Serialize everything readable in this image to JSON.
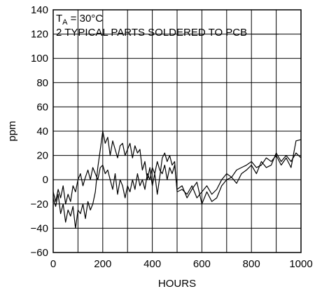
{
  "chart_data": {
    "type": "line",
    "xlabel": "HOURS",
    "ylabel": "ppm",
    "xlim": [
      0,
      1000
    ],
    "ylim": [
      -60,
      140
    ],
    "x_ticks": [
      "0",
      "200",
      "400",
      "600",
      "800",
      "1000"
    ],
    "y_ticks": [
      "−60",
      "−40",
      "−20",
      "0",
      "20",
      "40",
      "60",
      "80",
      "100",
      "120",
      "140"
    ],
    "x_minor_step": 100,
    "y_step": 20,
    "grid": true,
    "legend": "none",
    "annotations": {
      "ta_prefix": "T",
      "ta_subscript": "A",
      "ta_suffix": " = 30°C",
      "parts": "2 TYPICAL PARTS SOLDERED TO PCB"
    },
    "series": [
      {
        "color": "#000000",
        "points": [
          [
            0,
            -15
          ],
          [
            10,
            -22
          ],
          [
            20,
            -12
          ],
          [
            30,
            -28
          ],
          [
            40,
            -20
          ],
          [
            50,
            -35
          ],
          [
            60,
            -25
          ],
          [
            70,
            -30
          ],
          [
            80,
            -22
          ],
          [
            90,
            -40
          ],
          [
            100,
            -25
          ],
          [
            110,
            -28
          ],
          [
            120,
            -20
          ],
          [
            130,
            -32
          ],
          [
            140,
            -18
          ],
          [
            150,
            -25
          ],
          [
            160,
            -20
          ],
          [
            170,
            -10
          ],
          [
            180,
            10
          ],
          [
            190,
            25
          ],
          [
            200,
            40
          ],
          [
            210,
            30
          ],
          [
            220,
            35
          ],
          [
            230,
            20
          ],
          [
            240,
            32
          ],
          [
            250,
            25
          ],
          [
            260,
            18
          ],
          [
            270,
            28
          ],
          [
            280,
            30
          ],
          [
            290,
            20
          ],
          [
            300,
            25
          ],
          [
            310,
            30
          ],
          [
            320,
            18
          ],
          [
            330,
            28
          ],
          [
            340,
            22
          ],
          [
            350,
            25
          ],
          [
            360,
            8
          ],
          [
            370,
            15
          ],
          [
            380,
            0
          ],
          [
            390,
            10
          ],
          [
            400,
            -5
          ],
          [
            410,
            5
          ],
          [
            420,
            -12
          ],
          [
            430,
            2
          ],
          [
            440,
            18
          ],
          [
            450,
            22
          ],
          [
            460,
            15
          ],
          [
            470,
            20
          ],
          [
            480,
            12
          ],
          [
            490,
            15
          ],
          [
            500,
            -10
          ],
          [
            520,
            -8
          ],
          [
            540,
            -12
          ],
          [
            560,
            -5
          ],
          [
            580,
            -15
          ],
          [
            600,
            -10
          ],
          [
            620,
            -5
          ],
          [
            640,
            -12
          ],
          [
            660,
            -8
          ],
          [
            680,
            0
          ],
          [
            700,
            5
          ],
          [
            720,
            2
          ],
          [
            740,
            8
          ],
          [
            760,
            10
          ],
          [
            780,
            12
          ],
          [
            800,
            15
          ],
          [
            820,
            10
          ],
          [
            840,
            12
          ],
          [
            860,
            18
          ],
          [
            880,
            15
          ],
          [
            900,
            20
          ],
          [
            920,
            12
          ],
          [
            940,
            18
          ],
          [
            960,
            10
          ],
          [
            980,
            32
          ],
          [
            1000,
            33
          ]
        ]
      },
      {
        "color": "#000000",
        "points": [
          [
            0,
            -10
          ],
          [
            10,
            -18
          ],
          [
            20,
            -8
          ],
          [
            30,
            -15
          ],
          [
            40,
            -5
          ],
          [
            50,
            -20
          ],
          [
            60,
            -12
          ],
          [
            70,
            -18
          ],
          [
            80,
            -5
          ],
          [
            90,
            -10
          ],
          [
            100,
            0
          ],
          [
            110,
            5
          ],
          [
            120,
            -5
          ],
          [
            130,
            2
          ],
          [
            140,
            8
          ],
          [
            150,
            0
          ],
          [
            160,
            10
          ],
          [
            170,
            5
          ],
          [
            180,
            0
          ],
          [
            190,
            10
          ],
          [
            200,
            12
          ],
          [
            210,
            5
          ],
          [
            220,
            8
          ],
          [
            230,
            0
          ],
          [
            240,
            -8
          ],
          [
            250,
            5
          ],
          [
            260,
            -12
          ],
          [
            270,
            0
          ],
          [
            280,
            -5
          ],
          [
            290,
            -15
          ],
          [
            300,
            -5
          ],
          [
            310,
            -10
          ],
          [
            320,
            0
          ],
          [
            330,
            -8
          ],
          [
            340,
            5
          ],
          [
            350,
            -5
          ],
          [
            360,
            0
          ],
          [
            370,
            -8
          ],
          [
            380,
            5
          ],
          [
            390,
            0
          ],
          [
            400,
            10
          ],
          [
            410,
            5
          ],
          [
            420,
            15
          ],
          [
            430,
            8
          ],
          [
            440,
            5
          ],
          [
            450,
            12
          ],
          [
            460,
            0
          ],
          [
            470,
            10
          ],
          [
            480,
            5
          ],
          [
            490,
            12
          ],
          [
            500,
            -8
          ],
          [
            520,
            -5
          ],
          [
            540,
            -15
          ],
          [
            560,
            -8
          ],
          [
            580,
            -2
          ],
          [
            600,
            -20
          ],
          [
            620,
            -10
          ],
          [
            640,
            -18
          ],
          [
            660,
            -15
          ],
          [
            680,
            -5
          ],
          [
            700,
            0
          ],
          [
            720,
            2
          ],
          [
            740,
            -3
          ],
          [
            760,
            5
          ],
          [
            780,
            8
          ],
          [
            800,
            12
          ],
          [
            820,
            5
          ],
          [
            840,
            15
          ],
          [
            860,
            10
          ],
          [
            880,
            12
          ],
          [
            900,
            22
          ],
          [
            920,
            15
          ],
          [
            940,
            20
          ],
          [
            960,
            15
          ],
          [
            980,
            22
          ],
          [
            1000,
            18
          ]
        ]
      }
    ]
  }
}
